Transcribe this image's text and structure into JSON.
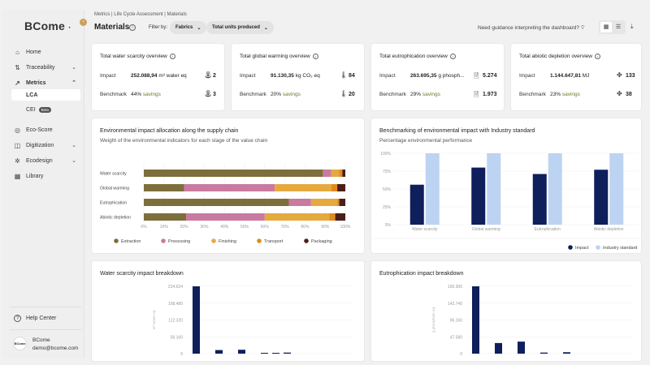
{
  "sidebar": {
    "logo": "BCome",
    "logo_dot": "·",
    "collapse_icon": "‹",
    "items": [
      {
        "label": "Home"
      },
      {
        "label": "Traceability"
      },
      {
        "label": "Metrics"
      },
      {
        "label": "LCA"
      },
      {
        "label": "CEI",
        "badge": "Beta"
      },
      {
        "label": "Eco-Score"
      },
      {
        "label": "Digitization"
      },
      {
        "label": "Ecodesign"
      },
      {
        "label": "Library"
      }
    ],
    "help": "Help Center",
    "user_avatar": "BCome",
    "user_name": "BCome",
    "user_email": "demo@bcome.com"
  },
  "header": {
    "breadcrumb": "Metrics | Life Cycle Assessment | Materials",
    "title": "Materials",
    "filter_label": "Filter by:",
    "filters": [
      "Fabrics",
      "Total units produced"
    ],
    "guidance": "Need guidance interpreting the dashboard?"
  },
  "kpis": [
    {
      "title": "Total water scarcity overview",
      "impact_label": "Impact",
      "impact_value": "252.088,94",
      "impact_unit": "m³ water eq",
      "impact_icon_num": "2",
      "benchmark_label": "Benchmark",
      "benchmark_pct": "44%",
      "benchmark_text": "savings",
      "benchmark_icon_num": "3"
    },
    {
      "title": "Total global warming overview",
      "impact_label": "Impact",
      "impact_value": "91.130,35",
      "impact_unit": "kg CO₂ eq",
      "impact_icon_num": "84",
      "benchmark_label": "Benchmark",
      "benchmark_pct": "20%",
      "benchmark_text": "savings",
      "benchmark_icon_num": "20"
    },
    {
      "title": "Total eutrophication overview",
      "impact_label": "Impact",
      "impact_value": "263.695,35",
      "impact_unit": "g phosph...",
      "impact_icon_num": "5.274",
      "benchmark_label": "Benchmark",
      "benchmark_pct": "29%",
      "benchmark_text": "savings",
      "benchmark_icon_num": "1.973"
    },
    {
      "title": "Total abiotic depletion overview",
      "impact_label": "Impact",
      "impact_value": "1.144.647,81",
      "impact_unit": "MJ",
      "impact_icon_num": "133",
      "benchmark_label": "Benchmark",
      "benchmark_pct": "23%",
      "benchmark_text": "savings",
      "benchmark_icon_num": "38"
    }
  ],
  "colors": {
    "extraction": "#7d6f3b",
    "processing": "#c97aa0",
    "finishing": "#e5a93f",
    "transport": "#e08a1e",
    "packaging": "#4a1f1a",
    "impact": "#0f1f5c",
    "industry": "#bcd3f2",
    "savings": "#6b7a2a"
  },
  "chart_data": [
    {
      "type": "bar",
      "orientation": "horizontal-stacked",
      "title": "Environmental impact allocation along the supply chain",
      "subtitle": "Weight of the environmental indicators for each stage of the value chain",
      "categories": [
        "Water scarcity",
        "Global warming",
        "Eutrophication",
        "Abiotic depletion"
      ],
      "series": [
        {
          "name": "Extraction",
          "values": [
            89,
            20,
            72,
            21
          ]
        },
        {
          "name": "Processing",
          "values": [
            4,
            45,
            11,
            39
          ]
        },
        {
          "name": "Finishing",
          "values": [
            4,
            28,
            13,
            32
          ]
        },
        {
          "name": "Transport",
          "values": [
            1.5,
            3,
            1,
            3
          ]
        },
        {
          "name": "Packaging",
          "values": [
            1.5,
            4,
            3,
            5
          ]
        }
      ],
      "xticks": [
        "0%",
        "10%",
        "20%",
        "30%",
        "40%",
        "50%",
        "60%",
        "70%",
        "80%",
        "90%",
        "100%"
      ],
      "xlim": [
        0,
        100
      ],
      "legend": "bottom"
    },
    {
      "type": "bar",
      "title": "Benchmarking of environmental impact with Industry standard",
      "subtitle": "Percentage environmental performance",
      "categories": [
        "Water scarcity",
        "Global warming",
        "Eutrophication",
        "Abiotic depletion"
      ],
      "series": [
        {
          "name": "Impact",
          "values": [
            56,
            80,
            71,
            77
          ]
        },
        {
          "name": "Industry standard",
          "values": [
            100,
            100,
            100,
            100
          ]
        }
      ],
      "yticks": [
        "0%",
        "25%",
        "50%",
        "75%",
        "100%"
      ],
      "ylim": [
        0,
        100
      ],
      "legend": "bottom-right"
    },
    {
      "type": "bar",
      "title": "Water scarcity impact breakdown",
      "ylabel": "m³ water eq",
      "yticks": [
        "0",
        "56.160",
        "112.320",
        "168.480",
        "224.624"
      ],
      "ylim": [
        0,
        224624
      ],
      "values": [
        224624,
        12000,
        13000,
        2000,
        1500,
        3500
      ]
    },
    {
      "type": "bar",
      "title": "Eutrophication impact breakdown",
      "ylabel": "g phosphate eq",
      "yticks": [
        "0",
        "47.580",
        "95.160",
        "142.740",
        "190.306"
      ],
      "ylim": [
        0,
        190306
      ],
      "values": [
        190306,
        30000,
        34000,
        3000,
        4000
      ]
    }
  ]
}
